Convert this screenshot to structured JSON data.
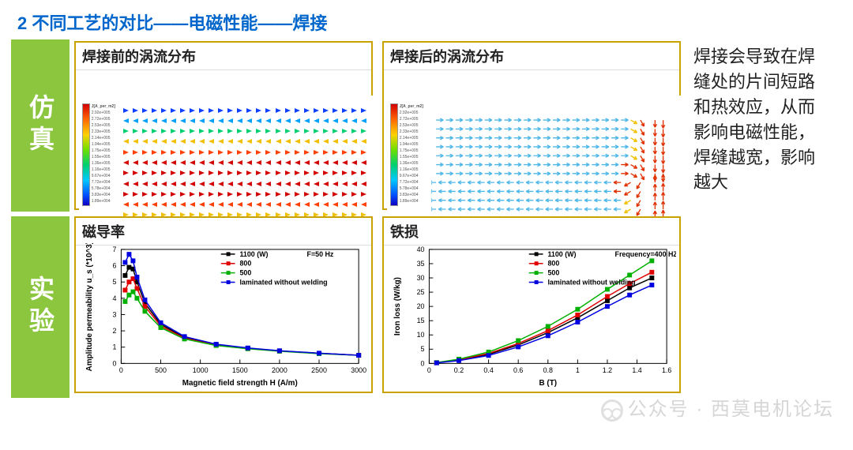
{
  "title": "2 不同工艺的对比——电磁性能——焊接",
  "section_sim_label": "仿真",
  "section_exp_label": "实验",
  "panel_titles": {
    "before": "焊接前的涡流分布",
    "after": "焊接后的涡流分布",
    "perm": "磁导率",
    "loss": "铁损"
  },
  "side_note": "焊接会导致在焊缝处的片间短路和热效应，从而影响电磁性能，焊缝越宽，影响越大",
  "watermark": "公众号 · 西莫电机论坛",
  "colorbar": {
    "title": "J[A_per_m2]",
    "ticks": [
      "2.92e+005",
      "2.72e+005",
      "2.53e+005",
      "2.33e+005",
      "2.14e+005",
      "1.94e+005",
      "1.75e+005",
      "1.55e+005",
      "1.36e+005",
      "1.16e+005",
      "9.67e+004",
      "7.72e+004",
      "5.78e+004",
      "3.83e+004",
      "1.89e+004"
    ],
    "colors_top_to_bottom": [
      "#d40000",
      "#ff6600",
      "#ffd000",
      "#6fe000",
      "#00d070",
      "#00c8ff",
      "#0050ff",
      "#1000c0"
    ]
  },
  "field_before": {
    "rows": 14,
    "arrows_per_row": 26,
    "row_colors": [
      "#1040ff",
      "#00a0ff",
      "#00d070",
      "#f0c000",
      "#ff4000",
      "#d40000",
      "#d40000",
      "#d40000",
      "#d40000",
      "#ff4000",
      "#f0c000",
      "#00d070",
      "#00a0ff",
      "#1040ff"
    ],
    "row_dirs": [
      "right",
      "left",
      "right",
      "left",
      "right",
      "left",
      "right",
      "left",
      "right",
      "left",
      "right",
      "left",
      "right",
      "left"
    ]
  },
  "field_after": {
    "description": "circulating eddy field converging to weld seam on right edge",
    "bg_arrow_color": "#4fb8e8",
    "hot_color": "#e03000",
    "mid_color": "#f0c000"
  },
  "chart_perm": {
    "type": "line",
    "title_note": "F=50 Hz",
    "xlabel": "Magnetic field strength  H (A/m)",
    "ylabel": "Amplitude permeability  u_s (*10^3)",
    "xlim": [
      0,
      3000
    ],
    "xticks": [
      0,
      500,
      1000,
      1500,
      2000,
      2500,
      3000
    ],
    "ylim": [
      0,
      7
    ],
    "yticks": [
      0,
      1,
      2,
      3,
      4,
      5,
      6,
      7
    ],
    "legend": [
      "1100 (W)",
      "800",
      "500",
      "laminated without welding"
    ],
    "series_colors": [
      "#000000",
      "#e00000",
      "#00b000",
      "#0000e0"
    ],
    "series_markers": [
      "square",
      "circle",
      "triangle",
      "diamond"
    ],
    "series": {
      "1100": [
        [
          50,
          3.8
        ],
        [
          100,
          4.2
        ],
        [
          150,
          4.4
        ],
        [
          200,
          4.0
        ],
        [
          300,
          3.2
        ],
        [
          500,
          2.2
        ],
        [
          800,
          1.5
        ],
        [
          1200,
          1.1
        ],
        [
          1600,
          0.9
        ],
        [
          2000,
          0.75
        ],
        [
          2500,
          0.6
        ],
        [
          3000,
          0.5
        ]
      ],
      "800": [
        [
          50,
          4.5
        ],
        [
          100,
          5.0
        ],
        [
          150,
          5.2
        ],
        [
          200,
          4.6
        ],
        [
          300,
          3.5
        ],
        [
          500,
          2.3
        ],
        [
          800,
          1.55
        ],
        [
          1200,
          1.12
        ],
        [
          1600,
          0.92
        ],
        [
          2000,
          0.76
        ],
        [
          2500,
          0.62
        ],
        [
          3000,
          0.5
        ]
      ],
      "500": [
        [
          50,
          5.4
        ],
        [
          100,
          5.9
        ],
        [
          150,
          5.8
        ],
        [
          200,
          5.0
        ],
        [
          300,
          3.7
        ],
        [
          500,
          2.4
        ],
        [
          800,
          1.6
        ],
        [
          1200,
          1.15
        ],
        [
          1600,
          0.93
        ],
        [
          2000,
          0.77
        ],
        [
          2500,
          0.62
        ],
        [
          3000,
          0.5
        ]
      ],
      "lam": [
        [
          50,
          6.2
        ],
        [
          100,
          6.7
        ],
        [
          150,
          6.3
        ],
        [
          200,
          5.3
        ],
        [
          300,
          3.9
        ],
        [
          500,
          2.5
        ],
        [
          800,
          1.65
        ],
        [
          1200,
          1.18
        ],
        [
          1600,
          0.95
        ],
        [
          2000,
          0.78
        ],
        [
          2500,
          0.63
        ],
        [
          3000,
          0.5
        ]
      ]
    },
    "background_color": "#ffffff",
    "axis_color": "#000000",
    "label_fontsize": 10,
    "tick_fontsize": 9
  },
  "chart_loss": {
    "type": "line",
    "title_note": "Frequency=400 HZ",
    "xlabel": "B (T)",
    "ylabel": "Iron loss (W/kg)",
    "xlim": [
      0,
      1.6
    ],
    "xticks": [
      0.0,
      0.2,
      0.4,
      0.6,
      0.8,
      1.0,
      1.2,
      1.4,
      1.6
    ],
    "ylim": [
      0,
      40
    ],
    "yticks": [
      0,
      5,
      10,
      15,
      20,
      25,
      30,
      35,
      40
    ],
    "legend": [
      "1100 (W)",
      "800",
      "500",
      "laminated without welding"
    ],
    "series_colors": [
      "#000000",
      "#e00000",
      "#00b000",
      "#0000e0"
    ],
    "series_markers": [
      "square",
      "circle",
      "triangle",
      "diamond"
    ],
    "series": {
      "1100": [
        [
          0.05,
          0.3
        ],
        [
          0.2,
          1.5
        ],
        [
          0.4,
          4
        ],
        [
          0.6,
          8
        ],
        [
          0.8,
          13
        ],
        [
          1.0,
          19
        ],
        [
          1.2,
          26
        ],
        [
          1.35,
          31
        ],
        [
          1.5,
          36
        ]
      ],
      "800": [
        [
          0.05,
          0.25
        ],
        [
          0.2,
          1.3
        ],
        [
          0.4,
          3.5
        ],
        [
          0.6,
          7
        ],
        [
          0.8,
          11.5
        ],
        [
          1.0,
          17
        ],
        [
          1.2,
          23.5
        ],
        [
          1.35,
          28
        ],
        [
          1.5,
          32
        ]
      ],
      "500": [
        [
          0.05,
          0.22
        ],
        [
          0.2,
          1.2
        ],
        [
          0.4,
          3.2
        ],
        [
          0.6,
          6.5
        ],
        [
          0.8,
          10.8
        ],
        [
          1.0,
          16
        ],
        [
          1.2,
          22
        ],
        [
          1.35,
          26.5
        ],
        [
          1.5,
          30
        ]
      ],
      "lam": [
        [
          0.05,
          0.2
        ],
        [
          0.2,
          1.0
        ],
        [
          0.4,
          2.8
        ],
        [
          0.6,
          5.8
        ],
        [
          0.8,
          9.7
        ],
        [
          1.0,
          14.5
        ],
        [
          1.2,
          20
        ],
        [
          1.35,
          24
        ],
        [
          1.5,
          27.5
        ]
      ]
    },
    "background_color": "#ffffff",
    "axis_color": "#000000",
    "label_fontsize": 10,
    "tick_fontsize": 9
  }
}
